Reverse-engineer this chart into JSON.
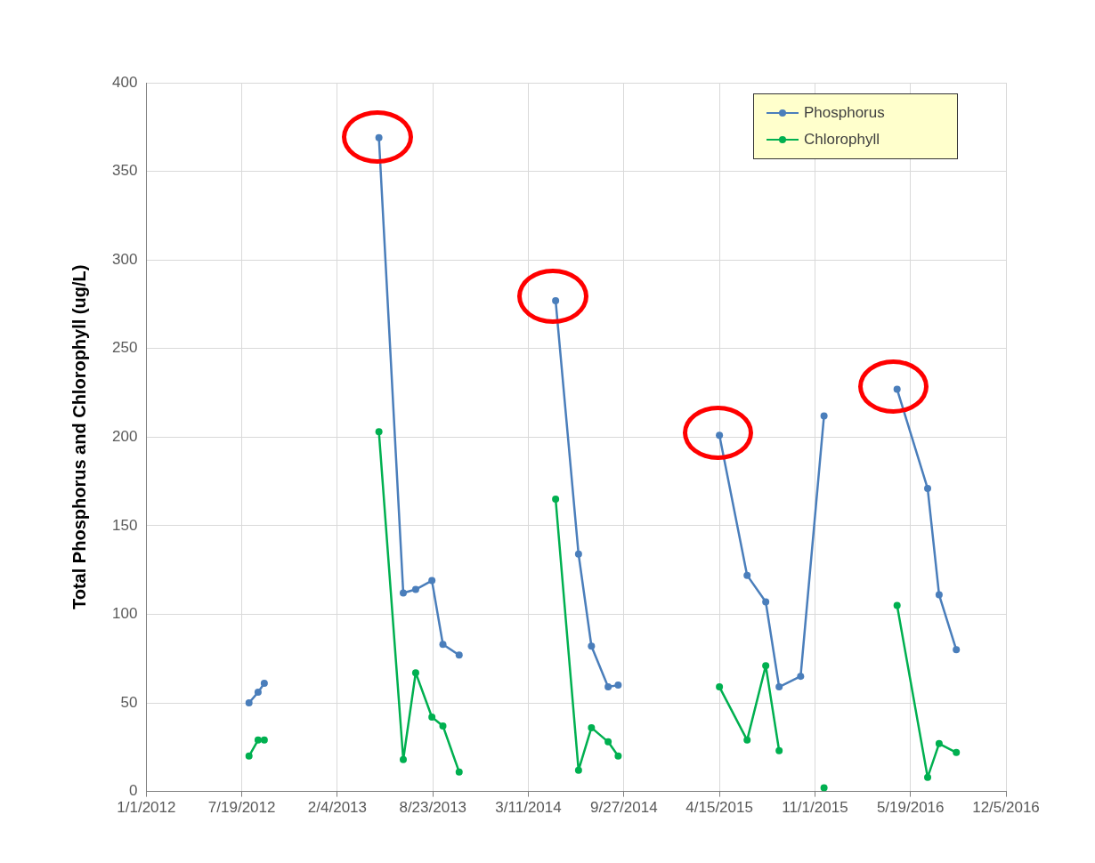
{
  "chart_data": {
    "type": "line",
    "ylabel": "Total Phosphorus and Chlorophyll (ug/L)",
    "x": [
      "2012-08-03",
      "2012-08-22",
      "2012-09-04",
      "2013-01-01",
      "2013-05-02",
      "2013-06-22",
      "2013-07-18",
      "2013-08-21",
      "2013-09-13",
      "2013-10-17",
      "2014-01-01",
      "2014-05-07",
      "2014-06-24",
      "2014-07-21",
      "2014-08-25",
      "2014-09-15",
      "2015-01-01",
      "2015-04-15",
      "2015-06-12",
      "2015-07-21",
      "2015-08-18",
      "2015-10-02",
      "2015-11-20",
      "2016-01-01",
      "2016-04-21",
      "2016-06-24",
      "2016-07-18",
      "2016-08-23"
    ],
    "series": [
      {
        "name": "Phosphorus",
        "color": "#4a7ebb",
        "values": [
          50,
          56,
          61,
          null,
          369,
          112,
          114,
          119,
          83,
          77,
          null,
          277,
          134,
          82,
          59,
          60,
          null,
          201,
          122,
          107,
          59,
          65,
          212,
          null,
          227,
          171,
          111,
          80
        ]
      },
      {
        "name": "Chlorophyll",
        "color": "#00b050",
        "values": [
          20,
          29,
          29,
          null,
          203,
          18,
          67,
          42,
          37,
          11,
          null,
          165,
          12,
          36,
          28,
          20,
          null,
          59,
          29,
          71,
          23,
          null,
          2,
          null,
          105,
          8,
          27,
          22
        ]
      }
    ],
    "xlim": [
      "2012-01-01",
      "2016-12-05"
    ],
    "xticks": [
      {
        "value": "2012-01-01",
        "label": "1/1/2012"
      },
      {
        "value": "2012-07-19",
        "label": "7/19/2012"
      },
      {
        "value": "2013-02-04",
        "label": "2/4/2013"
      },
      {
        "value": "2013-08-23",
        "label": "8/23/2013"
      },
      {
        "value": "2014-03-11",
        "label": "3/11/2014"
      },
      {
        "value": "2014-09-27",
        "label": "9/27/2014"
      },
      {
        "value": "2015-04-15",
        "label": "4/15/2015"
      },
      {
        "value": "2015-11-01",
        "label": "11/1/2015"
      },
      {
        "value": "2016-05-19",
        "label": "5/19/2016"
      },
      {
        "value": "2016-12-05",
        "label": "12/5/2016"
      }
    ],
    "ylim": [
      0,
      400
    ],
    "yticks": [
      0,
      50,
      100,
      150,
      200,
      250,
      300,
      350,
      400
    ],
    "grid": true,
    "legend": "top right",
    "marker": "circle",
    "line_style": "solid"
  }
}
